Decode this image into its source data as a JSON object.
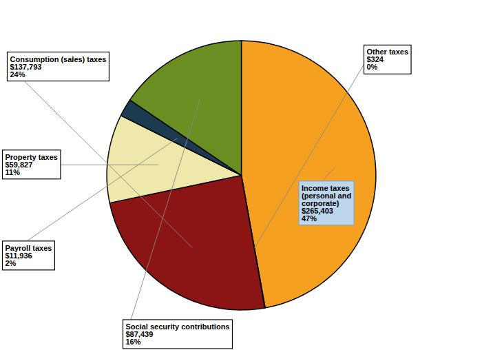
{
  "chart_data": {
    "type": "pie",
    "categories": [
      "Income taxes\n(personal and\ncorporate)",
      "Other taxes",
      "Consumption (sales) taxes",
      "Property taxes",
      "Payroll taxes",
      "Social security contributions"
    ],
    "values": [
      265403,
      324,
      137793,
      59827,
      11936,
      87439
    ],
    "value_labels": [
      "$265,403",
      "$324",
      "$137,793",
      "$59,827",
      "$11,936",
      "$87,439"
    ],
    "shares": [
      47,
      0,
      24,
      11,
      2,
      16
    ],
    "share_labels": [
      "47%",
      "0%",
      "24%",
      "11%",
      "2%",
      "16%"
    ],
    "colors": [
      "#F5A020",
      "#8B1010",
      "#8B1515",
      "#EEE8AA",
      "#1C3A50",
      "#6B8E23"
    ],
    "data_labels": true
  }
}
